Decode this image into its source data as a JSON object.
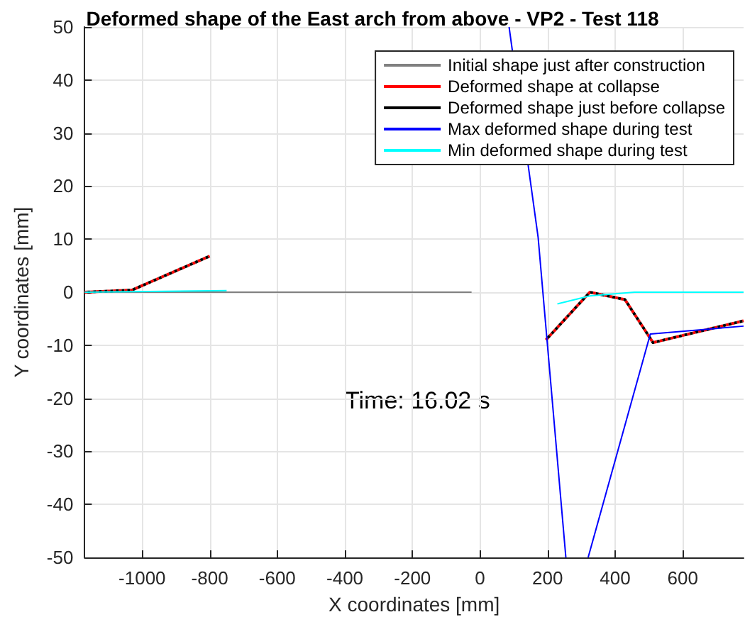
{
  "chart_data": {
    "type": "line",
    "title": "Deformed shape of the East arch from above - VP2 - Test 118",
    "xlabel": "X coordinates [mm]",
    "ylabel": "Y coordinates [mm]",
    "xlim": [
      -1170,
      780
    ],
    "xticks": [
      -1000,
      -800,
      -600,
      -400,
      -200,
      0,
      200,
      400,
      600
    ],
    "ylim": [
      -50,
      50
    ],
    "yticks": [
      -50,
      -40,
      -30,
      -20,
      -10,
      0,
      10,
      20,
      30,
      40,
      50
    ],
    "grid": true,
    "legend": "top right",
    "marker": "none",
    "annotations": [
      "Time: 16.02 s"
    ],
    "series": [
      {
        "name": "Initial shape just after construction",
        "color": "#808080",
        "x": [
          -1170,
          -25
        ],
        "values": [
          0,
          0
        ]
      },
      {
        "name": "Deformed shape at collapse",
        "color": "#ff0000",
        "line_style": "dotted",
        "x": [
          -1170,
          -1030,
          -800,
          null,
          195,
          325,
          429,
          512,
          780
        ],
        "values": [
          0,
          0.4,
          6.8,
          null,
          -9,
          0,
          -1.4,
          -9.5,
          -5.4
        ]
      },
      {
        "name": "Deformed shape just before collapse",
        "color": "#000000",
        "line_style": "dotted",
        "x": [
          -1170,
          -1030,
          -800,
          null,
          195,
          325,
          429,
          512,
          780
        ],
        "values": [
          0,
          0.4,
          6.8,
          null,
          -9,
          0,
          -1.4,
          -9.5,
          -5.4
        ]
      },
      {
        "name": "Max deformed shape during test",
        "color": "#0000ff",
        "x": [
          86,
          172,
          254,
          null,
          320,
          504,
          780
        ],
        "values": [
          50,
          10.3,
          -50,
          null,
          -50,
          -7.9,
          -6.4
        ]
      },
      {
        "name": "Min deformed shape during test",
        "color": "#00ffff",
        "x": [
          -1170,
          -750,
          null,
          229,
          325,
          457,
          780
        ],
        "values": [
          0,
          0.3,
          null,
          -2.2,
          -0.7,
          0,
          0
        ]
      }
    ]
  }
}
